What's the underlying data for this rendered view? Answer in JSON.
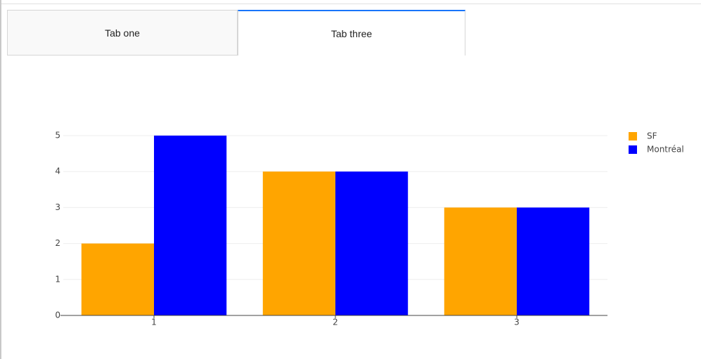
{
  "tabs": [
    "Tab one",
    "Tab three"
  ],
  "chart_data": {
    "type": "bar",
    "categories": [
      "1",
      "2",
      "3"
    ],
    "series": [
      {
        "name": "SF",
        "color": "#ffa500",
        "values": [
          2,
          4,
          3
        ]
      },
      {
        "name": "Montréal",
        "color": "#0000ff",
        "values": [
          5,
          4,
          3
        ]
      }
    ],
    "ylim": [
      0,
      5
    ],
    "yticks": [
      0,
      1,
      2,
      3,
      4,
      5
    ],
    "grid": true,
    "legend": "top-right"
  }
}
